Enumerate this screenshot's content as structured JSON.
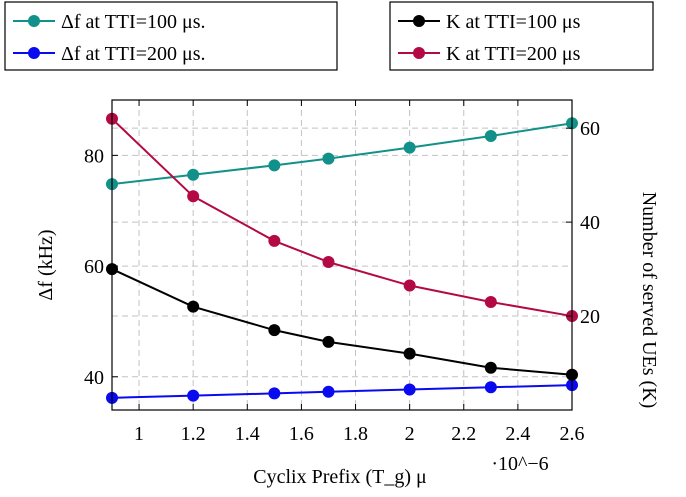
{
  "chart_data": {
    "type": "line",
    "x": [
      0.9,
      1.2,
      1.5,
      1.7,
      2.0,
      2.3,
      2.6
    ],
    "xlabel": "Cyclix Prefix (T_g) μ",
    "x_multiplier": "·10^−6",
    "xlim": [
      0.9,
      2.6
    ],
    "xticks": [
      "1",
      "1.2",
      "1.4",
      "1.6",
      "1.8",
      "2",
      "2.2",
      "2.4",
      "2.6"
    ],
    "ylabel_left": "Δf (kHz)",
    "ylim_left": [
      34,
      90
    ],
    "yticks_left": [
      "40",
      "60",
      "80"
    ],
    "ylabel_right": "Number of served UEs (K)",
    "ylim_right": [
      0,
      66
    ],
    "yticks_right": [
      "20",
      "40",
      "60"
    ],
    "grid": true,
    "series": [
      {
        "name": "Δf at TTI=100 μs.",
        "axis": "left",
        "color": "#12918a",
        "values": [
          74.8,
          76.5,
          78.2,
          79.4,
          81.4,
          83.5,
          85.8
        ]
      },
      {
        "name": "Δf at TTI=200 μs.",
        "axis": "left",
        "color": "#0a0af0",
        "values": [
          36.2,
          36.6,
          37.0,
          37.3,
          37.7,
          38.1,
          38.5
        ]
      },
      {
        "name": "K at TTI=100 μs",
        "axis": "right",
        "color": "#000000",
        "values": [
          30,
          22,
          17,
          14.5,
          12,
          9,
          7.5
        ]
      },
      {
        "name": "K at TTI=200 μs",
        "axis": "right",
        "color": "#b30a45",
        "values": [
          62,
          45.5,
          36,
          31.5,
          26.5,
          23,
          20
        ]
      }
    ],
    "legend": "top"
  }
}
